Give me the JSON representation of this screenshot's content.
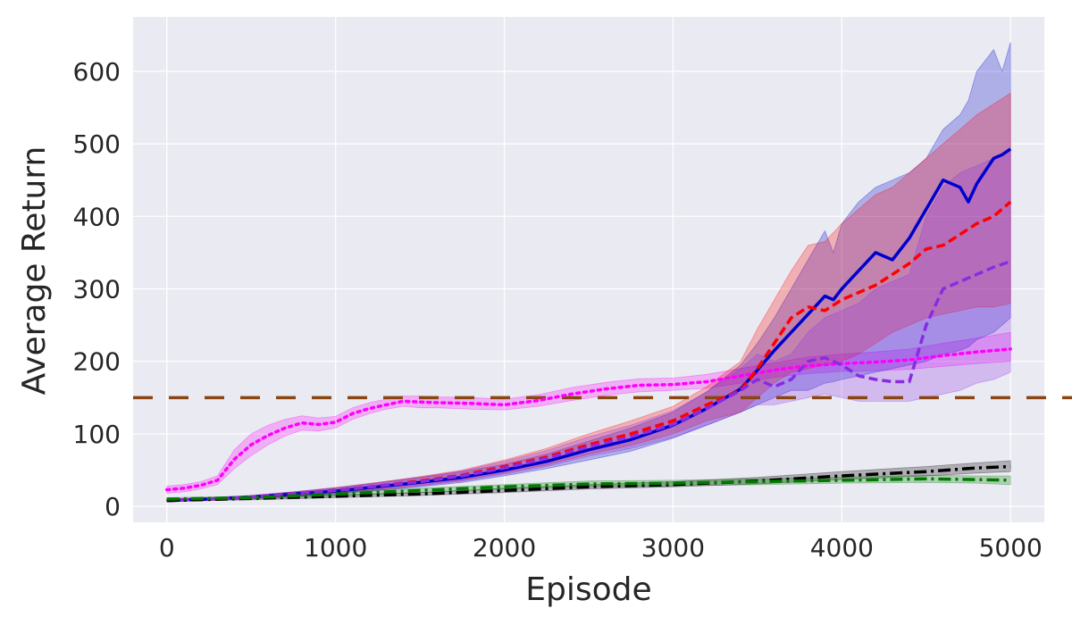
{
  "chart_data": {
    "type": "line",
    "title": "",
    "xlabel": "Episode",
    "ylabel": "Average Return",
    "xlim": [
      -200,
      5200
    ],
    "ylim": [
      -22,
      675
    ],
    "xticks": [
      0,
      1000,
      2000,
      3000,
      4000,
      5000
    ],
    "yticks": [
      0,
      100,
      200,
      300,
      400,
      500,
      600
    ],
    "grid": true,
    "background": "#eaeaf2",
    "reference_line": {
      "y": 150,
      "color": "#8b4513",
      "style": "dashed"
    },
    "series": [
      {
        "color": "#ff00ff",
        "style": "dotted",
        "x": [
          0,
          100,
          200,
          300,
          400,
          500,
          600,
          700,
          800,
          900,
          1000,
          1100,
          1200,
          1300,
          1400,
          1500,
          1600,
          1800,
          2000,
          2200,
          2400,
          2600,
          2800,
          3000,
          3200,
          3400,
          3600,
          3800,
          4000,
          4200,
          4400,
          4600,
          4800,
          5000
        ],
        "y": [
          23,
          25,
          29,
          36,
          65,
          85,
          98,
          108,
          115,
          113,
          116,
          128,
          135,
          140,
          145,
          144,
          143,
          142,
          140,
          146,
          155,
          162,
          167,
          168,
          172,
          180,
          188,
          194,
          197,
          199,
          202,
          208,
          213,
          217
        ],
        "lower": [
          18,
          20,
          24,
          30,
          52,
          70,
          85,
          97,
          105,
          104,
          108,
          120,
          128,
          134,
          138,
          136,
          136,
          134,
          133,
          138,
          146,
          153,
          158,
          160,
          163,
          170,
          178,
          183,
          186,
          187,
          189,
          193,
          197,
          200
        ],
        "upper": [
          28,
          30,
          34,
          42,
          78,
          100,
          112,
          120,
          125,
          122,
          124,
          136,
          143,
          148,
          152,
          152,
          151,
          150,
          148,
          154,
          164,
          171,
          176,
          177,
          182,
          190,
          198,
          206,
          210,
          213,
          217,
          225,
          232,
          240
        ]
      },
      {
        "color": "#0000cc",
        "style": "solid",
        "x": [
          0,
          250,
          500,
          750,
          1000,
          1250,
          1500,
          1750,
          2000,
          2250,
          2500,
          2750,
          3000,
          3200,
          3400,
          3500,
          3600,
          3700,
          3800,
          3900,
          3950,
          4000,
          4100,
          4200,
          4300,
          4400,
          4500,
          4600,
          4700,
          4750,
          4800,
          4900,
          4950,
          5000
        ],
        "y": [
          8,
          10,
          13,
          17,
          21,
          27,
          33,
          40,
          50,
          62,
          78,
          92,
          112,
          135,
          162,
          188,
          215,
          240,
          265,
          290,
          285,
          300,
          325,
          350,
          340,
          370,
          410,
          450,
          440,
          420,
          445,
          480,
          485,
          493
        ],
        "lower": [
          7,
          9,
          11,
          14,
          17,
          22,
          27,
          33,
          42,
          52,
          64,
          76,
          94,
          112,
          130,
          140,
          150,
          160,
          160,
          170,
          172,
          175,
          180,
          185,
          190,
          195,
          200,
          210,
          215,
          220,
          230,
          240,
          250,
          260
        ],
        "upper": [
          10,
          12,
          15,
          20,
          25,
          32,
          40,
          48,
          58,
          72,
          90,
          108,
          130,
          158,
          195,
          225,
          260,
          300,
          340,
          380,
          350,
          390,
          420,
          440,
          450,
          460,
          480,
          520,
          540,
          560,
          600,
          630,
          600,
          640
        ]
      },
      {
        "color": "#ff0000",
        "style": "dashed",
        "x": [
          0,
          250,
          500,
          750,
          1000,
          1250,
          1500,
          1750,
          2000,
          2250,
          2500,
          2750,
          3000,
          3200,
          3400,
          3500,
          3600,
          3700,
          3800,
          3900,
          4000,
          4100,
          4200,
          4300,
          4400,
          4500,
          4600,
          4700,
          4800,
          4900,
          5000
        ],
        "y": [
          8,
          10,
          13,
          17,
          22,
          28,
          35,
          43,
          55,
          68,
          85,
          100,
          118,
          140,
          160,
          190,
          225,
          260,
          275,
          270,
          285,
          295,
          305,
          320,
          335,
          355,
          360,
          375,
          390,
          400,
          420
        ],
        "lower": [
          7,
          9,
          11,
          14,
          18,
          23,
          29,
          36,
          46,
          57,
          72,
          84,
          100,
          118,
          130,
          150,
          170,
          185,
          190,
          195,
          200,
          210,
          225,
          240,
          250,
          260,
          265,
          270,
          275,
          275,
          280
        ],
        "upper": [
          10,
          12,
          15,
          20,
          26,
          33,
          41,
          50,
          64,
          80,
          100,
          118,
          138,
          165,
          200,
          245,
          285,
          325,
          360,
          365,
          390,
          410,
          430,
          440,
          460,
          480,
          500,
          520,
          540,
          555,
          570
        ]
      },
      {
        "color": "#8a2be2",
        "style": "dashed",
        "x": [
          0,
          250,
          500,
          750,
          1000,
          1250,
          1500,
          1750,
          2000,
          2250,
          2500,
          2750,
          3000,
          3200,
          3400,
          3500,
          3600,
          3700,
          3800,
          3900,
          4000,
          4100,
          4200,
          4300,
          4400,
          4500,
          4600,
          4700,
          4800,
          4900,
          5000
        ],
        "y": [
          8,
          10,
          13,
          17,
          22,
          28,
          34,
          42,
          53,
          66,
          82,
          96,
          113,
          135,
          160,
          175,
          165,
          175,
          200,
          205,
          195,
          180,
          175,
          172,
          172,
          250,
          300,
          310,
          320,
          330,
          338
        ],
        "lower": [
          7,
          9,
          11,
          14,
          18,
          23,
          28,
          35,
          44,
          55,
          69,
          80,
          95,
          112,
          130,
          140,
          140,
          145,
          150,
          155,
          150,
          145,
          145,
          145,
          145,
          150,
          155,
          160,
          170,
          175,
          185
        ],
        "upper": [
          10,
          12,
          15,
          20,
          26,
          33,
          40,
          49,
          62,
          77,
          96,
          112,
          132,
          158,
          190,
          210,
          200,
          210,
          240,
          260,
          270,
          280,
          300,
          310,
          320,
          400,
          440,
          460,
          470,
          480,
          490
        ]
      },
      {
        "color": "#000000",
        "style": "dashdot",
        "x": [
          0,
          500,
          1000,
          1500,
          2000,
          2500,
          3000,
          3500,
          4000,
          4500,
          4800,
          5000
        ],
        "y": [
          8,
          11,
          14,
          17,
          22,
          27,
          30,
          35,
          42,
          48,
          53,
          55
        ],
        "lower": [
          7,
          9,
          12,
          15,
          19,
          24,
          27,
          31,
          37,
          42,
          46,
          48
        ],
        "upper": [
          9,
          13,
          16,
          19,
          25,
          30,
          34,
          40,
          48,
          55,
          60,
          63
        ]
      },
      {
        "color": "#007a00",
        "style": "dashdot",
        "x": [
          0,
          500,
          1000,
          1500,
          2000,
          2500,
          3000,
          3500,
          4000,
          4500,
          4800,
          5000
        ],
        "y": [
          10,
          12,
          17,
          22,
          27,
          31,
          32,
          34,
          36,
          38,
          37,
          36
        ],
        "lower": [
          8,
          10,
          14,
          19,
          24,
          27,
          28,
          30,
          32,
          33,
          32,
          30
        ],
        "upper": [
          12,
          14,
          20,
          25,
          30,
          35,
          36,
          38,
          40,
          43,
          42,
          42
        ]
      }
    ]
  }
}
